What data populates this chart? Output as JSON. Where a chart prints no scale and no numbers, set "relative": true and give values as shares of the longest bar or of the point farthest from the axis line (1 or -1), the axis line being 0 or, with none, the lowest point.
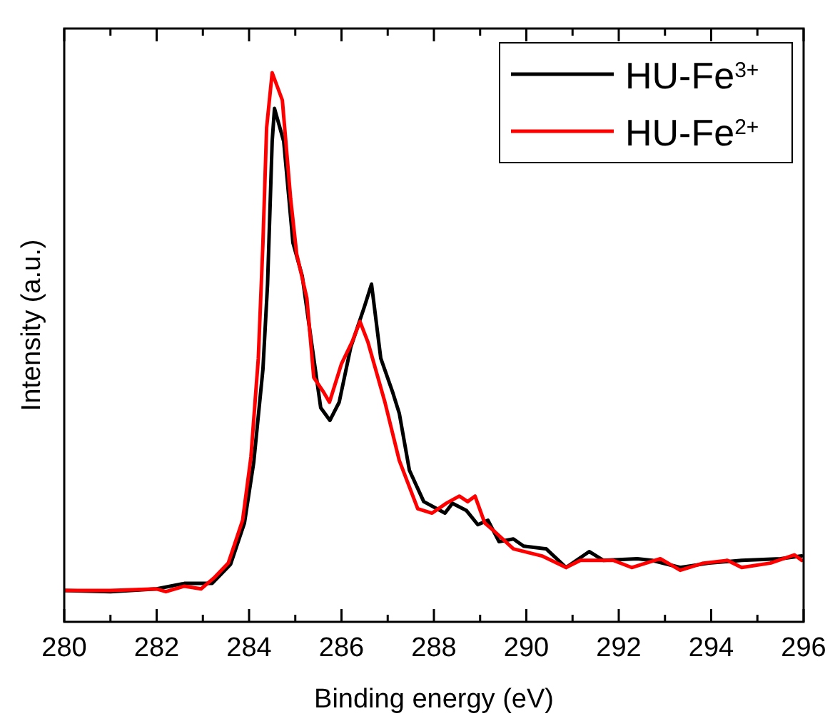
{
  "chart_data": {
    "type": "line",
    "xlabel": "Binding energy (eV)",
    "ylabel": "Intensity (a.u.)",
    "relative": true,
    "xlim": [
      280,
      296
    ],
    "xticks": [
      280,
      {
        "value": 281,
        "label": null
      },
      282,
      {
        "value": 283,
        "label": null
      },
      284,
      {
        "value": 285,
        "label": null
      },
      286,
      {
        "value": 287,
        "label": null
      },
      288,
      {
        "value": 289,
        "label": null
      },
      290,
      {
        "value": 291,
        "label": null
      },
      292,
      {
        "value": 293,
        "label": null
      },
      294,
      {
        "value": 295,
        "label": null
      },
      296
    ],
    "legend": "top right",
    "line_style": "solid",
    "series": [
      {
        "name": "HU-Fe$^{3+}$",
        "color": "#000000",
        "x": [
          280,
          281,
          282,
          282.6,
          283.2,
          283.6,
          283.9,
          284.1,
          284.3,
          284.4,
          284.5,
          284.55,
          284.75,
          284.95,
          285.15,
          285.35,
          285.55,
          285.75,
          285.95,
          286.2,
          286.5,
          286.65,
          286.85,
          287.1,
          287.25,
          287.47,
          287.78,
          288.24,
          288.4,
          288.7,
          288.95,
          289.17,
          289.41,
          289.72,
          289.94,
          290.43,
          290.86,
          291.36,
          291.67,
          292.4,
          292.72,
          293.33,
          293.95,
          294.66,
          295.5,
          295.96
        ],
        "values": [
          0.057,
          0.055,
          0.06,
          0.07,
          0.07,
          0.105,
          0.18,
          0.29,
          0.46,
          0.615,
          0.875,
          0.935,
          0.875,
          0.69,
          0.63,
          0.51,
          0.39,
          0.367,
          0.4,
          0.5,
          0.575,
          0.615,
          0.48,
          0.42,
          0.38,
          0.276,
          0.219,
          0.198,
          0.216,
          0.203,
          0.177,
          0.185,
          0.146,
          0.151,
          0.138,
          0.133,
          0.099,
          0.128,
          0.112,
          0.115,
          0.112,
          0.099,
          0.107,
          0.112,
          0.115,
          0.12
        ]
      },
      {
        "name": "HU-Fe$^{2+}$",
        "color": "#ff0000",
        "x": [
          280,
          281,
          282,
          282.2,
          282.6,
          282.96,
          283.24,
          283.55,
          283.86,
          284.04,
          284.2,
          284.3,
          284.38,
          284.5,
          284.72,
          284.9,
          285.03,
          285.25,
          285.4,
          285.6,
          285.74,
          286,
          286.23,
          286.4,
          286.57,
          286.94,
          287.25,
          287.65,
          287.96,
          288.27,
          288.55,
          288.73,
          288.89,
          289.1,
          289.32,
          289.72,
          290.34,
          290.86,
          291.17,
          291.88,
          292.28,
          292.9,
          293.33,
          293.83,
          294.35,
          294.66,
          295.28,
          295.8,
          295.96
        ],
        "values": [
          0.057,
          0.057,
          0.06,
          0.055,
          0.065,
          0.06,
          0.08,
          0.107,
          0.185,
          0.3,
          0.48,
          0.69,
          0.9,
          1,
          0.95,
          0.77,
          0.67,
          0.59,
          0.445,
          0.42,
          0.4,
          0.47,
          0.51,
          0.547,
          0.51,
          0.4,
          0.294,
          0.206,
          0.198,
          0.216,
          0.229,
          0.219,
          0.229,
          0.18,
          0.164,
          0.133,
          0.12,
          0.099,
          0.112,
          0.112,
          0.099,
          0.115,
          0.094,
          0.107,
          0.112,
          0.099,
          0.107,
          0.122,
          0.112
        ]
      }
    ]
  }
}
